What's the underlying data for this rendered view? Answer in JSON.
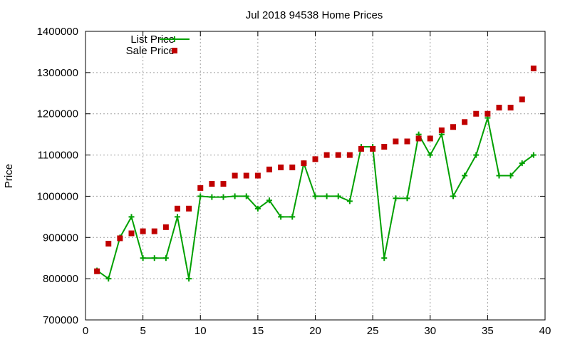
{
  "chart_data": {
    "type": "line",
    "title": "Jul 2018 94538 Home Prices",
    "xlabel": "",
    "ylabel": "Price",
    "xlim": [
      0,
      40
    ],
    "ylim": [
      700000,
      1400000
    ],
    "xticks": [
      0,
      5,
      10,
      15,
      20,
      25,
      30,
      35,
      40
    ],
    "yticks": [
      700000,
      800000,
      900000,
      1000000,
      1100000,
      1200000,
      1300000,
      1400000
    ],
    "grid": true,
    "legend_position": "top-left",
    "series": [
      {
        "name": "List Price",
        "style": "line+cross",
        "color": "#00a000",
        "x": [
          1,
          2,
          3,
          4,
          5,
          6,
          7,
          8,
          9,
          10,
          11,
          12,
          13,
          14,
          15,
          16,
          17,
          18,
          19,
          20,
          21,
          22,
          23,
          24,
          25,
          26,
          27,
          28,
          29,
          30,
          31,
          32,
          33,
          34,
          35,
          36,
          37,
          38,
          39
        ],
        "y": [
          820000,
          800000,
          900000,
          950000,
          850000,
          850000,
          850000,
          950000,
          800000,
          1000000,
          998000,
          998000,
          1000000,
          1000000,
          970000,
          990000,
          950000,
          950000,
          1080000,
          1000000,
          1000000,
          1000000,
          988000,
          1120000,
          1120000,
          850000,
          995000,
          995000,
          1150000,
          1100000,
          1150000,
          1000000,
          1050000,
          1100000,
          1190000,
          1050000,
          1050000,
          1080000,
          1100000
        ]
      },
      {
        "name": "Sale Price",
        "style": "square-markers",
        "color": "#c00000",
        "x": [
          1,
          2,
          3,
          4,
          5,
          6,
          7,
          8,
          9,
          10,
          11,
          12,
          13,
          14,
          15,
          16,
          17,
          18,
          19,
          20,
          21,
          22,
          23,
          24,
          25,
          26,
          27,
          28,
          29,
          30,
          31,
          32,
          33,
          34,
          35,
          36,
          37,
          38,
          39
        ],
        "y": [
          818000,
          885000,
          898000,
          910000,
          915000,
          915000,
          925000,
          970000,
          970000,
          1020000,
          1030000,
          1030000,
          1050000,
          1050000,
          1050000,
          1065000,
          1070000,
          1070000,
          1080000,
          1090000,
          1100000,
          1100000,
          1100000,
          1115000,
          1115000,
          1120000,
          1133000,
          1133000,
          1140000,
          1140000,
          1160000,
          1168000,
          1180000,
          1200000,
          1200000,
          1215000,
          1215000,
          1235000,
          1310000
        ]
      }
    ]
  }
}
